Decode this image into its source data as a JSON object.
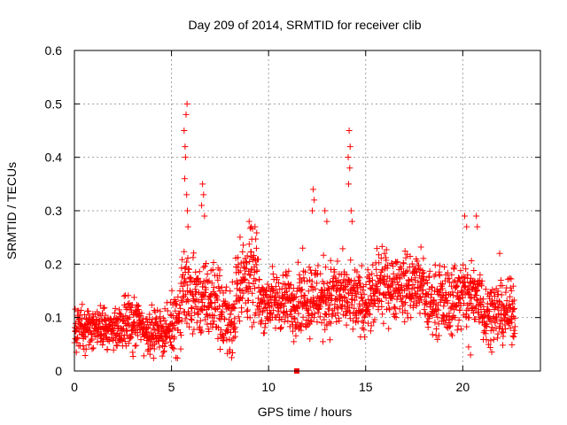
{
  "chart_data": {
    "type": "scatter",
    "title": "Day 209 of 2014, SRMTID for receiver clib",
    "xlabel": "GPS time / hours",
    "ylabel": "SRMTID / TECUs",
    "xlim": [
      0,
      24
    ],
    "ylim": [
      0,
      0.6
    ],
    "xticks": [
      0,
      5,
      10,
      15,
      20
    ],
    "xtick_labels": [
      "0",
      "5",
      "10",
      "15",
      "20"
    ],
    "yticks": [
      0,
      0.1,
      0.2,
      0.3,
      0.4,
      0.5,
      0.6
    ],
    "ytick_labels": [
      "0",
      "0.1",
      "0.2",
      "0.3",
      "0.4",
      "0.5",
      "0.6"
    ],
    "grid": true,
    "marker": "+",
    "color": "#ff0000",
    "series": [
      {
        "name": "SRMTID",
        "segments": [
          {
            "x_start": 0.0,
            "x_end": 1.0,
            "y_base": 0.08,
            "y_spread": 0.06
          },
          {
            "x_start": 1.0,
            "x_end": 2.5,
            "y_base": 0.08,
            "y_spread": 0.055
          },
          {
            "x_start": 2.5,
            "x_end": 3.5,
            "y_base": 0.09,
            "y_spread": 0.07
          },
          {
            "x_start": 3.5,
            "x_end": 5.0,
            "y_base": 0.075,
            "y_spread": 0.06
          },
          {
            "x_start": 5.0,
            "x_end": 5.5,
            "y_base": 0.1,
            "y_spread": 0.09
          },
          {
            "x_start": 5.5,
            "x_end": 6.2,
            "y_base": 0.15,
            "y_spread": 0.12
          },
          {
            "x_start": 6.2,
            "x_end": 7.5,
            "y_base": 0.13,
            "y_spread": 0.1
          },
          {
            "x_start": 7.5,
            "x_end": 8.3,
            "y_base": 0.1,
            "y_spread": 0.09
          },
          {
            "x_start": 8.3,
            "x_end": 9.5,
            "y_base": 0.17,
            "y_spread": 0.12
          },
          {
            "x_start": 9.5,
            "x_end": 11.5,
            "y_base": 0.13,
            "y_spread": 0.08
          },
          {
            "x_start": 11.5,
            "x_end": 12.5,
            "y_base": 0.14,
            "y_spread": 0.1
          },
          {
            "x_start": 12.5,
            "x_end": 14.0,
            "y_base": 0.14,
            "y_spread": 0.1
          },
          {
            "x_start": 14.0,
            "x_end": 15.5,
            "y_base": 0.13,
            "y_spread": 0.09
          },
          {
            "x_start": 15.5,
            "x_end": 18.0,
            "y_base": 0.16,
            "y_spread": 0.09
          },
          {
            "x_start": 18.0,
            "x_end": 19.5,
            "y_base": 0.13,
            "y_spread": 0.09
          },
          {
            "x_start": 19.5,
            "x_end": 21.0,
            "y_base": 0.14,
            "y_spread": 0.1
          },
          {
            "x_start": 21.0,
            "x_end": 22.7,
            "y_base": 0.11,
            "y_spread": 0.08
          }
        ],
        "spikes": [
          {
            "x": 5.65,
            "y": 0.45
          },
          {
            "x": 5.75,
            "y": 0.48
          },
          {
            "x": 5.8,
            "y": 0.5
          },
          {
            "x": 5.7,
            "y": 0.42
          },
          {
            "x": 5.72,
            "y": 0.4
          },
          {
            "x": 5.68,
            "y": 0.36
          },
          {
            "x": 5.78,
            "y": 0.33
          },
          {
            "x": 5.82,
            "y": 0.3
          },
          {
            "x": 5.85,
            "y": 0.27
          },
          {
            "x": 6.6,
            "y": 0.35
          },
          {
            "x": 6.65,
            "y": 0.33
          },
          {
            "x": 6.55,
            "y": 0.31
          },
          {
            "x": 6.7,
            "y": 0.29
          },
          {
            "x": 9.0,
            "y": 0.28
          },
          {
            "x": 9.1,
            "y": 0.27
          },
          {
            "x": 9.3,
            "y": 0.27
          },
          {
            "x": 12.3,
            "y": 0.34
          },
          {
            "x": 12.35,
            "y": 0.32
          },
          {
            "x": 12.25,
            "y": 0.3
          },
          {
            "x": 12.9,
            "y": 0.3
          },
          {
            "x": 13.0,
            "y": 0.28
          },
          {
            "x": 14.15,
            "y": 0.45
          },
          {
            "x": 14.2,
            "y": 0.42
          },
          {
            "x": 14.1,
            "y": 0.4
          },
          {
            "x": 14.18,
            "y": 0.38
          },
          {
            "x": 14.12,
            "y": 0.35
          },
          {
            "x": 14.25,
            "y": 0.3
          },
          {
            "x": 14.3,
            "y": 0.28
          },
          {
            "x": 20.1,
            "y": 0.29
          },
          {
            "x": 20.7,
            "y": 0.29
          },
          {
            "x": 20.75,
            "y": 0.27
          },
          {
            "x": 20.2,
            "y": 0.27
          },
          {
            "x": 21.9,
            "y": 0.22
          }
        ],
        "lows": [
          {
            "x": 8.1,
            "y": 0.025
          },
          {
            "x": 8.0,
            "y": 0.04
          },
          {
            "x": 20.4,
            "y": 0.03
          },
          {
            "x": 20.3,
            "y": 0.045
          },
          {
            "x": 0.1,
            "y": 0.035
          },
          {
            "x": 3.0,
            "y": 0.035
          },
          {
            "x": 11.3,
            "y": 0.055
          },
          {
            "x": 12.8,
            "y": 0.055
          }
        ],
        "outlier": {
          "x": 11.45,
          "y": 0.0
        }
      }
    ]
  }
}
